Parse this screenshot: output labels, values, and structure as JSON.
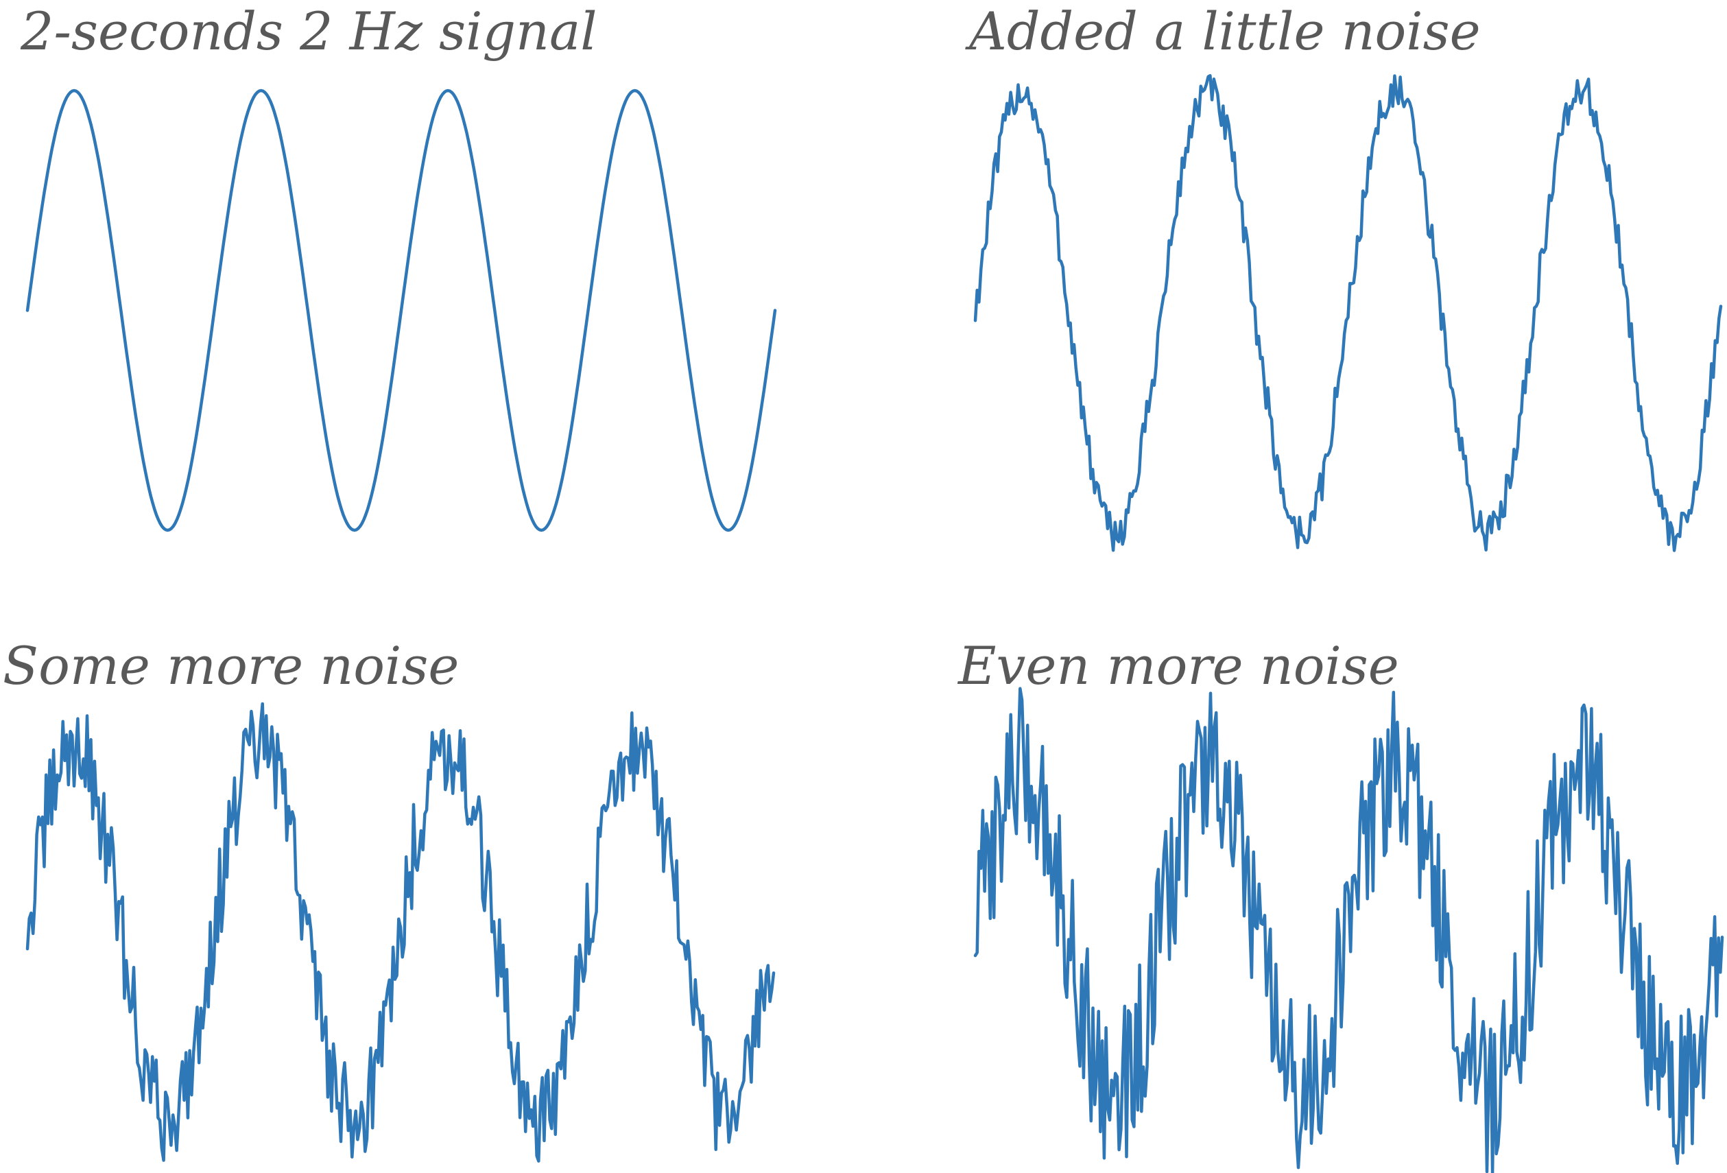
{
  "chart_data": [
    {
      "type": "line",
      "title": "2-seconds 2 Hz signal",
      "duration_s": 2,
      "frequency_hz": 2,
      "noise_level": 0,
      "x_range": [
        0,
        2
      ],
      "ylim": [
        -1.1,
        1.1
      ],
      "grid": false,
      "axes_visible": false,
      "series": [
        {
          "color": "#2f78b8"
        }
      ]
    },
    {
      "type": "line",
      "title": "Added a little noise",
      "duration_s": 2,
      "frequency_hz": 2,
      "noise_level": 0.05,
      "x_range": [
        0,
        2
      ],
      "ylim": [
        -1.1,
        1.1
      ],
      "grid": false,
      "axes_visible": false,
      "series": [
        {
          "color": "#2f78b8"
        }
      ]
    },
    {
      "type": "line",
      "title": "Some more noise",
      "duration_s": 2,
      "frequency_hz": 2,
      "noise_level": 0.15,
      "x_range": [
        0,
        2
      ],
      "ylim": [
        -1.3,
        1.3
      ],
      "grid": false,
      "axes_visible": false,
      "series": [
        {
          "color": "#2f78b8"
        }
      ]
    },
    {
      "type": "line",
      "title": "Even more noise",
      "duration_s": 2,
      "frequency_hz": 2,
      "noise_level": 0.3,
      "x_range": [
        0,
        2
      ],
      "ylim": [
        -1.5,
        1.5
      ],
      "grid": false,
      "axes_visible": false,
      "series": [
        {
          "color": "#2f78b8"
        }
      ]
    }
  ]
}
